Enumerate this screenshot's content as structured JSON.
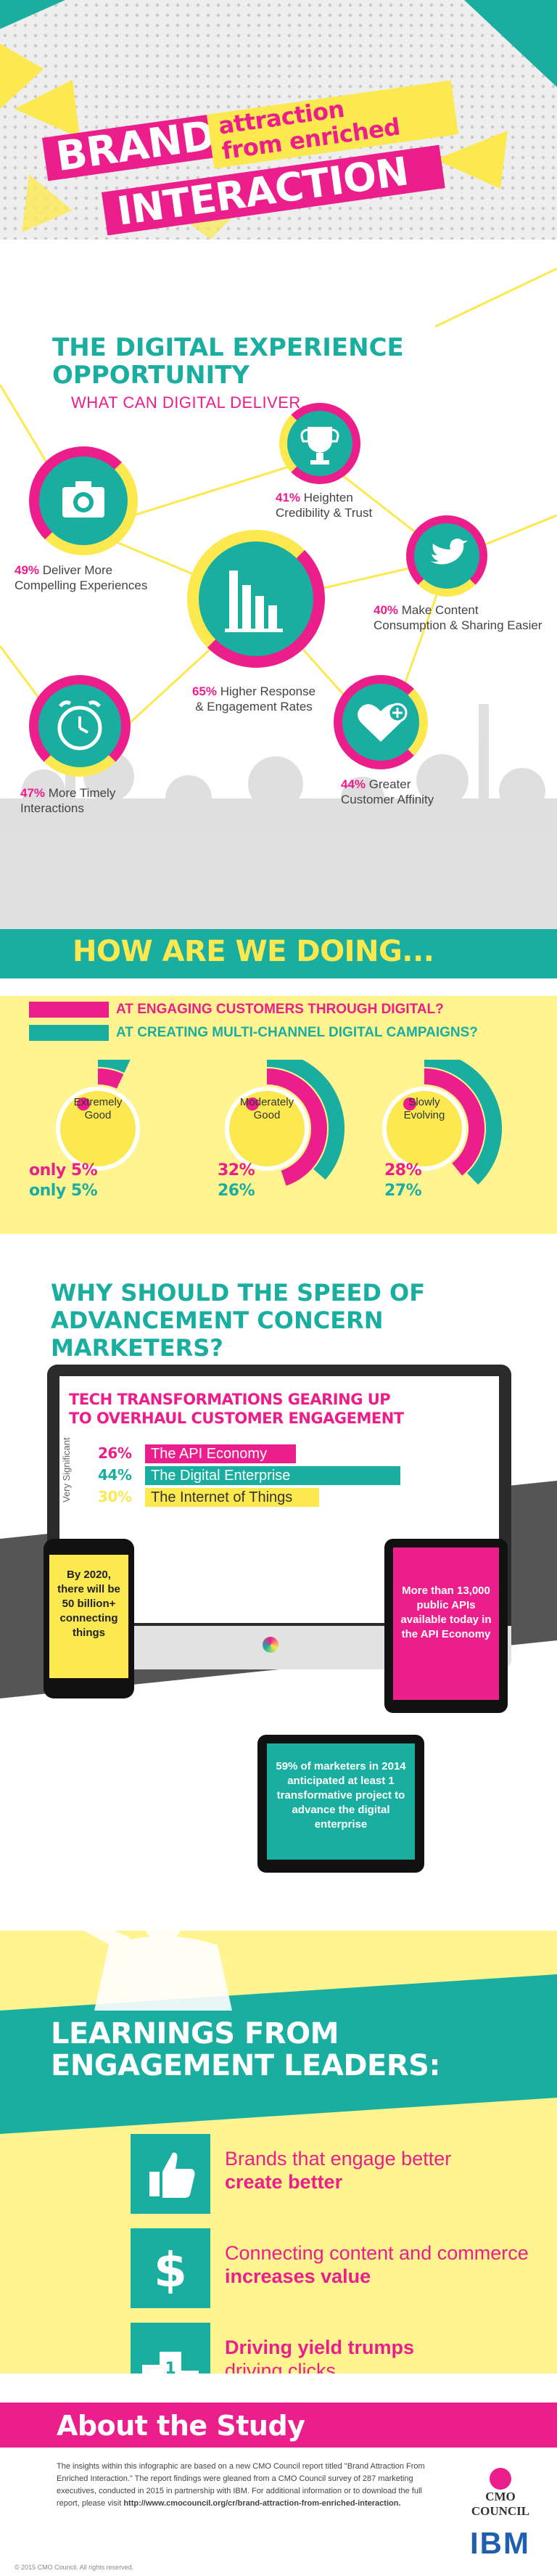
{
  "header": {
    "brand": "BRAND",
    "line1": "attraction",
    "line2": "from enriched",
    "interaction": "INTERACTION"
  },
  "digital": {
    "title_line1": "THE DIGITAL EXPERIENCE",
    "title_line2": "OPPORTUNITY",
    "subtitle": "WHAT CAN DIGITAL DELIVER...",
    "stats": [
      {
        "pct": "49%",
        "text1": "Deliver More",
        "text2": "Compelling Experiences",
        "icon": "camera-icon"
      },
      {
        "pct": "41%",
        "text1": "Heighten",
        "text2": "Credibility & Trust",
        "icon": "trophy-icon"
      },
      {
        "pct": "40%",
        "text1": "Make Content",
        "text2": "Consumption & Sharing Easier",
        "icon": "bird-icon"
      },
      {
        "pct": "65%",
        "text1": "Higher Response",
        "text2": "& Engagement Rates",
        "icon": "bar-chart-icon"
      },
      {
        "pct": "47%",
        "text1": "More Timely",
        "text2": "Interactions",
        "icon": "alarm-clock-icon"
      },
      {
        "pct": "44%",
        "text1": "Greater",
        "text2": "Customer Affinity",
        "icon": "heart-plus-icon"
      }
    ]
  },
  "how": {
    "title": "HOW ARE WE DOING...",
    "legend1": "AT ENGAGING CUSTOMERS THROUGH DIGITAL?",
    "legend2": "AT CREATING MULTI-CHANNEL DIGITAL CAMPAIGNS?",
    "gauges": [
      {
        "label1": "Extremely",
        "label2": "Good",
        "a": "5%",
        "b": "5%",
        "prefix": "only",
        "va": 5,
        "vb": 5
      },
      {
        "label1": "Moderately",
        "label2": "Good",
        "a": "32%",
        "b": "26%",
        "prefix": "",
        "va": 32,
        "vb": 26
      },
      {
        "label1": "Slowly",
        "label2": "Evolving",
        "a": "28%",
        "b": "27%",
        "prefix": "",
        "va": 28,
        "vb": 27
      }
    ],
    "colors": {
      "pink": "#ec1e8c",
      "teal": "#1aaea0",
      "yellow": "#fce94f"
    }
  },
  "why": {
    "title_line1": "WHY SHOULD THE SPEED OF",
    "title_line2": "ADVANCEMENT CONCERN MARKETERS?",
    "screen_title1": "TECH TRANSFORMATIONS GEARING UP",
    "screen_title2": "TO OVERHAUL CUSTOMER ENGAGEMENT",
    "axis_label": "Very Significant",
    "bars": [
      {
        "pct": "26%",
        "label": "The API Economy",
        "color": "#ec1e8c"
      },
      {
        "pct": "44%",
        "label": "The Digital Enterprise",
        "color": "#1aaea0"
      },
      {
        "pct": "30%",
        "label": "The Internet of Things",
        "color": "#fce94f"
      }
    ],
    "phone_text": "By 2020, there will be 50 billion+ connecting things",
    "tablet_text": "More than 13,000 public APIs available today in the API Economy",
    "ipad_text": "59% of marketers in 2014 anticipated at least 1 transformative project to advance the digital enterprise"
  },
  "learn": {
    "title_line1": "LEARNINGS FROM",
    "title_line2": "ENGAGEMENT LEADERS:",
    "items": [
      {
        "plain": "Brands that engage better",
        "bold": "create better",
        "icon": "thumbs-up-icon"
      },
      {
        "plain": "Connecting content and commerce",
        "bold": "increases value",
        "icon": "dollar-icon"
      },
      {
        "plain": "driving clicks",
        "bold": "Driving yield trumps",
        "icon": "podium-icon"
      }
    ]
  },
  "about": {
    "title": "About the Study",
    "body": "The insights within this infographic are based on a new CMO Council report titled \"Brand Attraction From Enriched Interaction.\" The report findings were gleaned from a CMO Council survey of 287 marketing executives, conducted in 2015 in partnership with IBM. For additional information or to download the full report, please visit",
    "link": "http://www.cmocouncil.org/cr/brand-attraction-from-enriched-interaction.",
    "cmo_logo": "CMO COUNCIL",
    "ibm_logo": "IBM",
    "copyright": "© 2015 CMO Council. All rights reserved."
  }
}
